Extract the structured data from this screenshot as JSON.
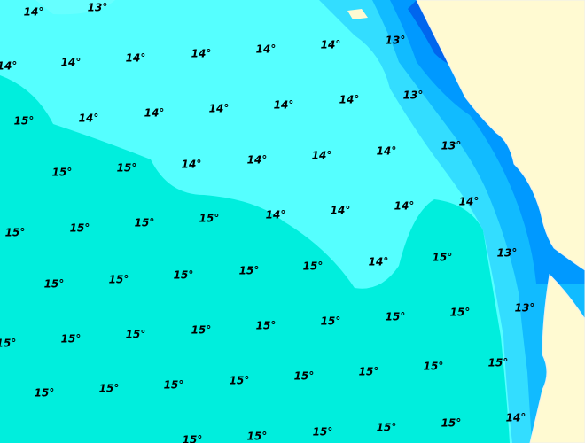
{
  "labels": [
    "14°",
    "13°",
    "14°",
    "14°",
    "14°",
    "14°",
    "14°",
    "14°",
    "13°",
    "13°",
    "14°",
    "14°",
    "14°",
    "14°",
    "14°",
    "15°",
    "15°",
    "15°",
    "14°",
    "14°",
    "14°",
    "14°",
    "13°",
    "14°",
    "14°",
    "14°",
    "14°",
    "15°",
    "15°",
    "15°",
    "15°",
    "15°",
    "15°",
    "15°",
    "15°",
    "15°",
    "14°",
    "15°",
    "13°",
    "13°",
    "15°",
    "15°",
    "15°",
    "15°",
    "15°",
    "15°",
    "15°",
    "15°",
    "15°",
    "15°",
    "15°",
    "15°",
    "15°",
    "15°",
    "15°",
    "15°",
    "14°",
    "15°",
    "15°",
    "15°",
    "15°",
    "15°"
  ]
}
